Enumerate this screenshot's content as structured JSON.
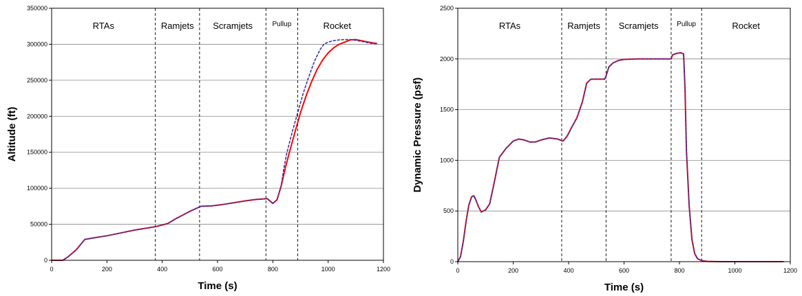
{
  "chart_data": [
    {
      "type": "line",
      "title": "",
      "xlabel": "Time (s)",
      "ylabel": "Altitude (ft)",
      "xlim": [
        0,
        1200
      ],
      "ylim": [
        0,
        350000
      ],
      "xticks": [
        0,
        200,
        400,
        600,
        800,
        1000,
        1200
      ],
      "yticks": [
        0,
        50000,
        100000,
        150000,
        200000,
        250000,
        300000,
        350000
      ],
      "grid": "horizontal",
      "legend": "none",
      "phase_boundaries": [
        375,
        535,
        775,
        890
      ],
      "phases": [
        {
          "label": "RTAs",
          "start": 0,
          "end": 375
        },
        {
          "label": "Ramjets",
          "start": 375,
          "end": 535
        },
        {
          "label": "Scramjets",
          "start": 535,
          "end": 775
        },
        {
          "label": "Pullup",
          "start": 775,
          "end": 890
        },
        {
          "label": "Rocket",
          "start": 890,
          "end": 1175
        }
      ],
      "series": [
        {
          "color": "#ff0000",
          "style": "solid",
          "x": [
            0,
            40,
            60,
            90,
            120,
            150,
            200,
            250,
            300,
            350,
            380,
            420,
            450,
            500,
            540,
            580,
            620,
            660,
            700,
            740,
            780,
            800,
            815,
            830,
            845,
            860,
            880,
            900,
            920,
            940,
            960,
            980,
            1000,
            1020,
            1040,
            1060,
            1080,
            1100,
            1120,
            1140,
            1160,
            1175
          ],
          "y": [
            0,
            0,
            5000,
            15000,
            29000,
            31000,
            34000,
            38000,
            42000,
            45000,
            47000,
            51000,
            58000,
            68000,
            75000,
            75500,
            77500,
            80000,
            82500,
            84500,
            85500,
            79000,
            84000,
            103000,
            128000,
            150000,
            178000,
            205000,
            228000,
            248000,
            265000,
            278000,
            288000,
            295000,
            300000,
            303000,
            306000,
            306500,
            305000,
            303500,
            302000,
            301000
          ]
        },
        {
          "color": "#3333aa",
          "style": "dashed",
          "x": [
            0,
            40,
            60,
            90,
            120,
            150,
            200,
            250,
            300,
            350,
            380,
            420,
            450,
            500,
            540,
            580,
            620,
            660,
            700,
            740,
            780,
            800,
            815,
            830,
            840,
            850,
            870,
            890,
            910,
            930,
            950,
            970,
            985,
            1000,
            1020,
            1040,
            1060,
            1080,
            1100,
            1120,
            1140,
            1160,
            1175
          ],
          "y": [
            0,
            0,
            5000,
            15000,
            29000,
            31000,
            34000,
            38000,
            42000,
            45000,
            47000,
            51000,
            58000,
            68000,
            75000,
            75500,
            77500,
            80000,
            82500,
            84500,
            85500,
            79000,
            84000,
            103000,
            128000,
            148000,
            178000,
            205000,
            232000,
            255000,
            276000,
            292000,
            300000,
            303000,
            305000,
            306000,
            306500,
            306500,
            305500,
            304000,
            302500,
            301000,
            300500
          ]
        }
      ]
    },
    {
      "type": "line",
      "title": "",
      "xlabel": "Time (s)",
      "ylabel": "Dynamic Pressure (psf)",
      "xlim": [
        0,
        1200
      ],
      "ylim": [
        0,
        2500
      ],
      "xticks": [
        0,
        200,
        400,
        600,
        800,
        1000,
        1200
      ],
      "yticks": [
        0,
        500,
        1000,
        1500,
        2000,
        2500
      ],
      "grid": "horizontal",
      "legend": "none",
      "phase_boundaries": [
        375,
        535,
        770,
        880
      ],
      "phases": [
        {
          "label": "RTAs",
          "start": 0,
          "end": 375
        },
        {
          "label": "Ramjets",
          "start": 375,
          "end": 535
        },
        {
          "label": "Scramjets",
          "start": 535,
          "end": 770
        },
        {
          "label": "Pullup",
          "start": 770,
          "end": 880
        },
        {
          "label": "Rocket",
          "start": 880,
          "end": 1200
        }
      ],
      "series": [
        {
          "color": "#ff0000",
          "style": "solid",
          "x": [
            0,
            10,
            20,
            30,
            40,
            50,
            58,
            65,
            75,
            85,
            100,
            115,
            130,
            150,
            175,
            200,
            220,
            240,
            260,
            280,
            300,
            330,
            360,
            380,
            395,
            410,
            430,
            450,
            465,
            480,
            500,
            520,
            530,
            535,
            545,
            560,
            580,
            600,
            650,
            700,
            750,
            770,
            775,
            790,
            805,
            815,
            820,
            825,
            835,
            845,
            855,
            865,
            880,
            900,
            950,
            1000,
            1100,
            1175
          ],
          "y": [
            0,
            50,
            200,
            400,
            560,
            640,
            650,
            610,
            540,
            490,
            510,
            570,
            760,
            1030,
            1120,
            1190,
            1210,
            1200,
            1180,
            1180,
            1200,
            1220,
            1210,
            1190,
            1240,
            1320,
            1420,
            1580,
            1760,
            1800,
            1800,
            1800,
            1800,
            1830,
            1920,
            1960,
            1985,
            1995,
            2000,
            2000,
            2000,
            2000,
            2040,
            2055,
            2060,
            2050,
            1700,
            1100,
            550,
            220,
            80,
            30,
            10,
            3,
            0,
            0,
            0,
            0
          ]
        },
        {
          "color": "#3333aa",
          "style": "dashed",
          "x": [
            0,
            10,
            20,
            30,
            40,
            50,
            58,
            65,
            75,
            85,
            100,
            115,
            130,
            150,
            175,
            200,
            220,
            240,
            260,
            280,
            300,
            330,
            360,
            380,
            395,
            410,
            430,
            450,
            465,
            480,
            500,
            520,
            530,
            535,
            545,
            560,
            580,
            600,
            650,
            700,
            750,
            770,
            775,
            790,
            805,
            815,
            820,
            825,
            835,
            845,
            855,
            865,
            880,
            900,
            950,
            1000,
            1100,
            1175
          ],
          "y": [
            0,
            50,
            200,
            400,
            560,
            640,
            650,
            610,
            540,
            490,
            510,
            570,
            760,
            1030,
            1120,
            1190,
            1210,
            1200,
            1180,
            1180,
            1200,
            1220,
            1210,
            1190,
            1240,
            1320,
            1420,
            1580,
            1760,
            1800,
            1800,
            1800,
            1800,
            1830,
            1920,
            1960,
            1985,
            1995,
            2000,
            2000,
            2000,
            2000,
            2040,
            2055,
            2060,
            2050,
            1700,
            1100,
            550,
            220,
            80,
            30,
            10,
            3,
            0,
            0,
            0,
            0
          ]
        }
      ]
    }
  ]
}
